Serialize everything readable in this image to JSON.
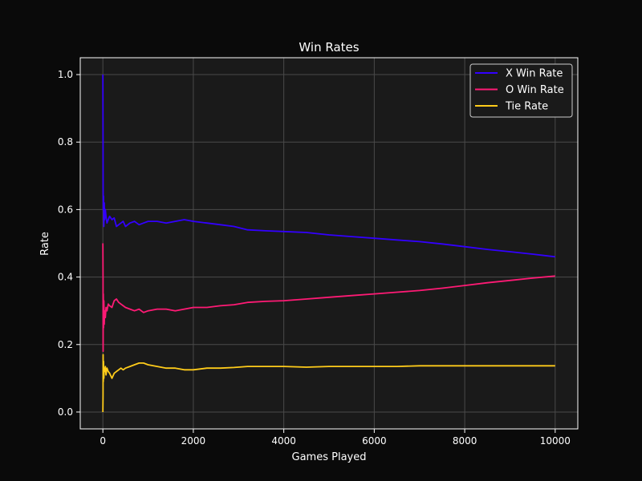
{
  "colors": {
    "figure_bg": "#0a0a0a",
    "axes_bg": "#1a1a1a",
    "grid": "#4a4a4a",
    "spine": "#ffffff",
    "text": "#ffffff"
  },
  "chart_data": {
    "type": "line",
    "title": "Win Rates",
    "xlabel": "Games Played",
    "ylabel": "Rate",
    "xlim": [
      -500,
      10500
    ],
    "ylim": [
      -0.05,
      1.05
    ],
    "xticks": [
      0,
      2000,
      4000,
      6000,
      8000,
      10000
    ],
    "xtick_labels": [
      "0",
      "2000",
      "4000",
      "6000",
      "8000",
      "10000"
    ],
    "yticks": [
      0.0,
      0.2,
      0.4,
      0.6,
      0.8,
      1.0
    ],
    "ytick_labels": [
      "0.0",
      "0.2",
      "0.4",
      "0.6",
      "0.8",
      "1.0"
    ],
    "grid": true,
    "legend_position": "top-right",
    "series": [
      {
        "name": "X Win Rate",
        "color": "#3300ff",
        "x": [
          1,
          3,
          6,
          10,
          15,
          22,
          30,
          40,
          55,
          70,
          90,
          120,
          150,
          200,
          250,
          300,
          350,
          400,
          450,
          500,
          600,
          700,
          800,
          900,
          1000,
          1200,
          1400,
          1600,
          1800,
          2000,
          2300,
          2600,
          2900,
          3200,
          3600,
          4000,
          4500,
          5000,
          5500,
          6000,
          6500,
          7000,
          7500,
          8000,
          8500,
          9000,
          9500,
          10000
        ],
        "y": [
          1.0,
          0.8,
          0.66,
          0.6,
          0.64,
          0.55,
          0.62,
          0.57,
          0.6,
          0.58,
          0.56,
          0.57,
          0.58,
          0.57,
          0.575,
          0.55,
          0.555,
          0.56,
          0.565,
          0.55,
          0.56,
          0.565,
          0.555,
          0.56,
          0.565,
          0.565,
          0.56,
          0.565,
          0.57,
          0.565,
          0.56,
          0.555,
          0.55,
          0.54,
          0.537,
          0.535,
          0.532,
          0.525,
          0.52,
          0.515,
          0.51,
          0.505,
          0.498,
          0.49,
          0.482,
          0.475,
          0.468,
          0.46
        ]
      },
      {
        "name": "O Win Rate",
        "color": "#ff1a75",
        "x": [
          1,
          3,
          6,
          10,
          15,
          22,
          30,
          40,
          55,
          70,
          90,
          120,
          150,
          200,
          250,
          300,
          350,
          400,
          450,
          500,
          600,
          700,
          800,
          900,
          1000,
          1200,
          1400,
          1600,
          1800,
          2000,
          2300,
          2600,
          2900,
          3200,
          3600,
          4000,
          4500,
          5000,
          5500,
          6000,
          6500,
          7000,
          7500,
          8000,
          8500,
          9000,
          9500,
          10000
        ],
        "y": [
          0.5,
          0.4,
          0.18,
          0.35,
          0.25,
          0.33,
          0.26,
          0.3,
          0.28,
          0.31,
          0.3,
          0.32,
          0.315,
          0.31,
          0.33,
          0.335,
          0.325,
          0.32,
          0.315,
          0.31,
          0.305,
          0.3,
          0.305,
          0.295,
          0.3,
          0.305,
          0.305,
          0.3,
          0.305,
          0.31,
          0.31,
          0.315,
          0.318,
          0.325,
          0.328,
          0.33,
          0.335,
          0.34,
          0.345,
          0.35,
          0.355,
          0.36,
          0.367,
          0.375,
          0.383,
          0.39,
          0.397,
          0.403
        ]
      },
      {
        "name": "Tie Rate",
        "color": "#ffcc1a",
        "x": [
          1,
          3,
          6,
          10,
          15,
          22,
          30,
          40,
          55,
          70,
          90,
          120,
          150,
          200,
          250,
          300,
          350,
          400,
          450,
          500,
          600,
          700,
          800,
          900,
          1000,
          1200,
          1400,
          1600,
          1800,
          2000,
          2300,
          2600,
          2900,
          3200,
          3600,
          4000,
          4500,
          5000,
          5500,
          6000,
          6500,
          7000,
          7500,
          8000,
          8500,
          9000,
          9500,
          10000
        ],
        "y": [
          0.0,
          0.05,
          0.17,
          0.09,
          0.15,
          0.1,
          0.13,
          0.12,
          0.135,
          0.11,
          0.13,
          0.12,
          0.115,
          0.1,
          0.115,
          0.12,
          0.125,
          0.13,
          0.125,
          0.13,
          0.135,
          0.14,
          0.145,
          0.145,
          0.14,
          0.135,
          0.13,
          0.13,
          0.125,
          0.125,
          0.13,
          0.13,
          0.132,
          0.135,
          0.135,
          0.135,
          0.133,
          0.135,
          0.135,
          0.135,
          0.135,
          0.137,
          0.137,
          0.137,
          0.137,
          0.137,
          0.137,
          0.137
        ]
      }
    ]
  }
}
